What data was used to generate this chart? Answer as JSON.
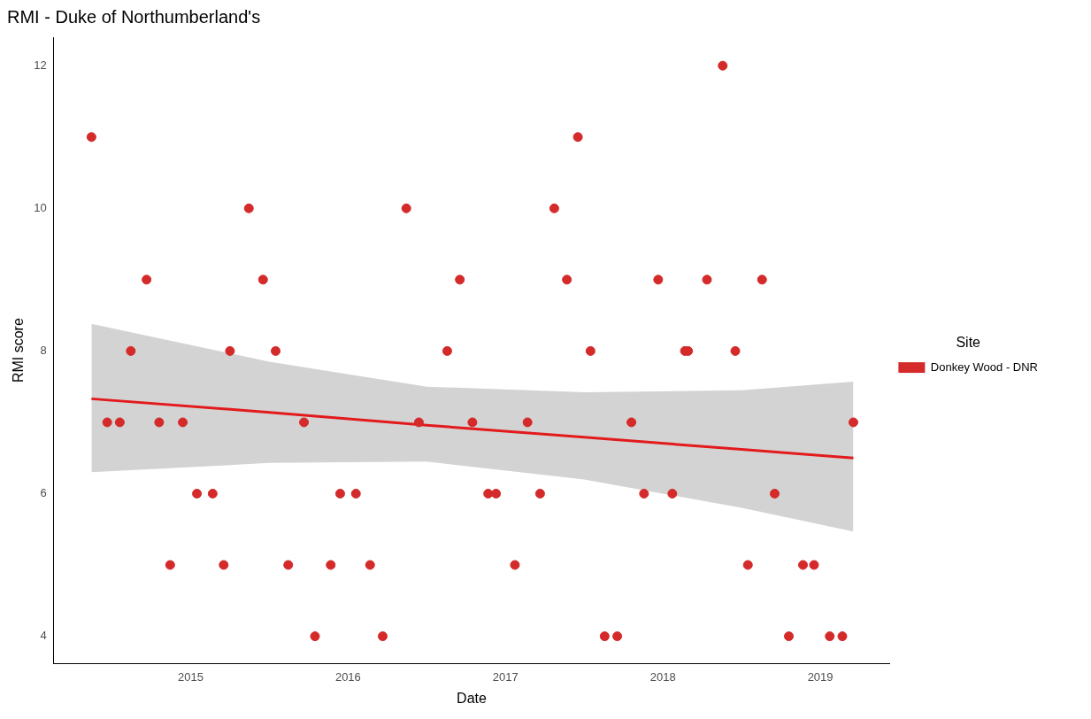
{
  "chart_data": {
    "type": "scatter",
    "title": "RMI - Duke of Northumberland's",
    "xlabel": "Date",
    "ylabel": "RMI score",
    "legend_title": "Site",
    "legend": "right",
    "grid": false,
    "xlim": [
      2014.13,
      2019.44
    ],
    "xticks": [
      2015,
      2016,
      2017,
      2018,
      2019
    ],
    "ylim": [
      3.62,
      12.4
    ],
    "yticks": [
      4,
      6,
      8,
      10,
      12
    ],
    "series": [
      {
        "name": "Donkey Wood - DNR",
        "marker": "circle",
        "color": "#d42a2a",
        "x": [
          2014.37,
          2014.47,
          2014.55,
          2014.62,
          2014.72,
          2014.8,
          2014.87,
          2014.95,
          2015.04,
          2015.14,
          2015.21,
          2015.25,
          2015.37,
          2015.46,
          2015.54,
          2015.62,
          2015.72,
          2015.79,
          2015.89,
          2015.95,
          2016.05,
          2016.14,
          2016.22,
          2016.37,
          2016.45,
          2016.63,
          2016.71,
          2016.79,
          2016.89,
          2016.94,
          2017.06,
          2017.14,
          2017.22,
          2017.31,
          2017.39,
          2017.46,
          2017.54,
          2017.63,
          2017.71,
          2017.8,
          2017.88,
          2017.97,
          2018.06,
          2018.14,
          2018.16,
          2018.28,
          2018.38,
          2018.46,
          2018.54,
          2018.63,
          2018.71,
          2018.8,
          2018.89,
          2018.96,
          2019.06,
          2019.14,
          2019.21
        ],
        "values": [
          11,
          7,
          7,
          8,
          9,
          7,
          5,
          7,
          6,
          6,
          5,
          8,
          10,
          9,
          8,
          5,
          7,
          4,
          5,
          6,
          6,
          5,
          4,
          10,
          7,
          8,
          9,
          7,
          6,
          6,
          5,
          7,
          6,
          10,
          9,
          11,
          8,
          4,
          4,
          7,
          6,
          9,
          6,
          8,
          8,
          9,
          12,
          8,
          5,
          9,
          6,
          4,
          5,
          5,
          4,
          4,
          7
        ]
      },
      {
        "type": "line",
        "marker": "none",
        "color": "#e31a1c",
        "line_style": "solid",
        "x": [
          2014.37,
          2015.5,
          2016.5,
          2017.5,
          2018.5,
          2019.21
        ],
        "values": [
          7.33,
          7.14,
          6.96,
          6.79,
          6.62,
          6.5
        ],
        "lower": [
          6.3,
          6.43,
          6.45,
          6.2,
          5.8,
          5.47
        ],
        "upper": [
          8.38,
          7.85,
          7.5,
          7.42,
          7.45,
          7.57
        ]
      }
    ]
  }
}
